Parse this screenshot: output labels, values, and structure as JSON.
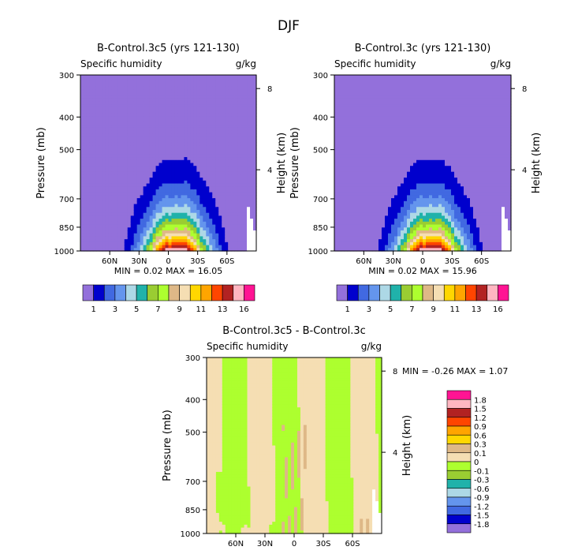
{
  "figure": {
    "title": "DJF"
  },
  "colors": {
    "main": [
      "#9370DB",
      "#0000CD",
      "#4169E1",
      "#6495ED",
      "#ADD8E6",
      "#20B2AA",
      "#9ACD32",
      "#ADFF2F",
      "#DEB887",
      "#F5DEB3",
      "#FFD700",
      "#FFA500",
      "#FF4500",
      "#B22222",
      "#FFB6C1",
      "#FF1493"
    ],
    "diff": [
      "#9370DB",
      "#0000CD",
      "#4169E1",
      "#6495ED",
      "#ADD8E6",
      "#20B2AA",
      "#9ACD32",
      "#ADFF2F",
      "#F5DEB3",
      "#DEB887",
      "#FFD700",
      "#FFA500",
      "#FF4500",
      "#B22222",
      "#FFB6C1",
      "#FF1493"
    ]
  },
  "chart_data": [
    {
      "type": "heatmap",
      "title": "B-Control.3c5 (yrs 121-130)",
      "variable": "Specific humidity",
      "units": "g/kg",
      "ylabel": "Pressure (mb)",
      "ylabel_right": "Height (km)",
      "y_ticks": [
        "300",
        "400",
        "500",
        "700",
        "850",
        "1000"
      ],
      "y_tick_values": [
        300,
        400,
        500,
        700,
        850,
        1000
      ],
      "right_ticks": [
        "8",
        "4"
      ],
      "right_tick_values": [
        8,
        4
      ],
      "x_ticks": [
        "60N",
        "30N",
        "0",
        "30S",
        "60S"
      ],
      "x_tick_values": [
        60,
        30,
        0,
        -30,
        -60
      ],
      "xlim": [
        90,
        -90
      ],
      "ylim": [
        1000,
        300
      ],
      "stats": "MIN =    0.02   MAX =   16.05",
      "min": 0.02,
      "max": 16.05,
      "peak_lat": -8,
      "contour_levels": [
        0,
        1,
        2,
        3,
        4,
        5,
        6,
        7,
        8,
        9,
        10,
        11,
        12,
        13,
        14,
        16
      ],
      "colorbar_labels": [
        "1",
        "3",
        "5",
        "7",
        "9",
        "11",
        "13",
        "16"
      ]
    },
    {
      "type": "heatmap",
      "title": "B-Control.3c (yrs 121-130)",
      "variable": "Specific humidity",
      "units": "g/kg",
      "ylabel": "Pressure (mb)",
      "ylabel_right": "Height (km)",
      "y_ticks": [
        "300",
        "400",
        "500",
        "700",
        "850",
        "1000"
      ],
      "y_tick_values": [
        300,
        400,
        500,
        700,
        850,
        1000
      ],
      "right_ticks": [
        "8",
        "4"
      ],
      "right_tick_values": [
        8,
        4
      ],
      "x_ticks": [
        "60N",
        "30N",
        "0",
        "30S",
        "60S"
      ],
      "x_tick_values": [
        60,
        30,
        0,
        -30,
        -60
      ],
      "xlim": [
        90,
        -90
      ],
      "ylim": [
        1000,
        300
      ],
      "stats": "MIN =    0.02   MAX =   15.96",
      "min": 0.02,
      "max": 15.96,
      "peak_lat": -8,
      "contour_levels": [
        0,
        1,
        2,
        3,
        4,
        5,
        6,
        7,
        8,
        9,
        10,
        11,
        12,
        13,
        14,
        16
      ],
      "colorbar_labels": [
        "1",
        "3",
        "5",
        "7",
        "9",
        "11",
        "13",
        "16"
      ]
    },
    {
      "type": "heatmap",
      "title": "B-Control.3c5 - B-Control.3c",
      "variable": "Specific humidity",
      "units": "g/kg",
      "ylabel": "Pressure (mb)",
      "ylabel_right": "Height (km)",
      "y_ticks": [
        "300",
        "400",
        "500",
        "700",
        "850",
        "1000"
      ],
      "y_tick_values": [
        300,
        400,
        500,
        700,
        850,
        1000
      ],
      "right_ticks": [
        "8",
        "4"
      ],
      "right_tick_values": [
        8,
        4
      ],
      "x_ticks": [
        "60N",
        "30N",
        "0",
        "30S",
        "60S"
      ],
      "x_tick_values": [
        60,
        30,
        0,
        -30,
        -60
      ],
      "xlim": [
        90,
        -90
      ],
      "ylim": [
        1000,
        300
      ],
      "stats": "MIN =   -0.26   MAX =    1.07",
      "min": -0.26,
      "max": 1.07,
      "dominant_values": "mostly between -0.1 and 0.1",
      "colorbar_labels": [
        "1.8",
        "1.5",
        "1.2",
        "0.9",
        "0.6",
        "0.3",
        "0.1",
        "0",
        "-0.1",
        "-0.3",
        "-0.6",
        "-0.9",
        "-1.2",
        "-1.5",
        "-1.8"
      ]
    }
  ]
}
